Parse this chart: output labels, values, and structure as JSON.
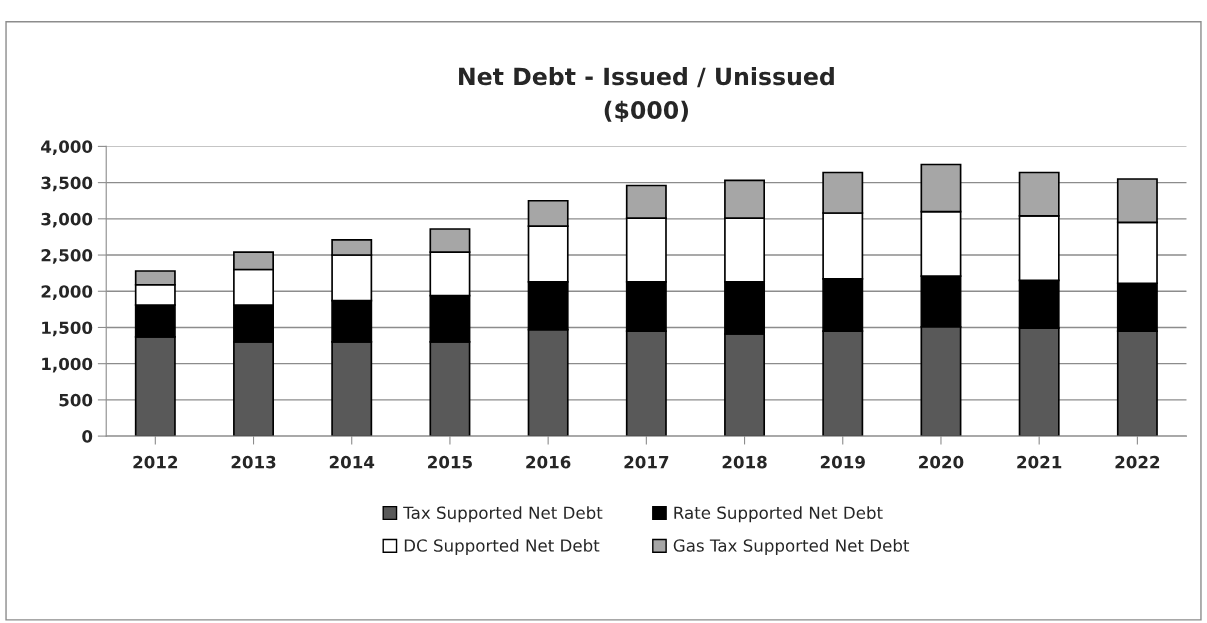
{
  "chart_data": {
    "type": "bar",
    "title": "Net Debt - Issued / Unissued\n($000)",
    "stacked": true,
    "categories": [
      "2012",
      "2013",
      "2014",
      "2015",
      "2016",
      "2017",
      "2018",
      "2019",
      "2020",
      "2021",
      "2022"
    ],
    "series": [
      {
        "name": "Tax Supported Net Debt",
        "color": "#595959",
        "values": [
          1370,
          1300,
          1300,
          1300,
          1470,
          1450,
          1410,
          1450,
          1510,
          1490,
          1450
        ]
      },
      {
        "name": "Rate Supported Net Debt",
        "color": "#000000",
        "values": [
          440,
          510,
          570,
          640,
          660,
          680,
          720,
          720,
          700,
          660,
          660
        ]
      },
      {
        "name": "DC Supported Net Debt",
        "color": "#ffffff",
        "values": [
          280,
          490,
          630,
          600,
          770,
          880,
          880,
          910,
          890,
          890,
          840
        ]
      },
      {
        "name": "Gas Tax Supported Net Debt",
        "color": "#a6a6a6",
        "values": [
          190,
          240,
          210,
          320,
          350,
          450,
          520,
          560,
          650,
          600,
          600
        ]
      }
    ],
    "ylim": [
      0,
      4000
    ],
    "yticks": [
      {
        "value": 0,
        "label": "0"
      },
      {
        "value": 500,
        "label": "500"
      },
      {
        "value": 1000,
        "label": "1,000"
      },
      {
        "value": 1500,
        "label": "1,500"
      },
      {
        "value": 2000,
        "label": "2,000"
      },
      {
        "value": 2500,
        "label": "2,500"
      },
      {
        "value": 3000,
        "label": "3,000"
      },
      {
        "value": 3500,
        "label": "3,500"
      },
      {
        "value": 4000,
        "label": "4,000"
      }
    ],
    "grid": "y",
    "legend": "bottom"
  }
}
